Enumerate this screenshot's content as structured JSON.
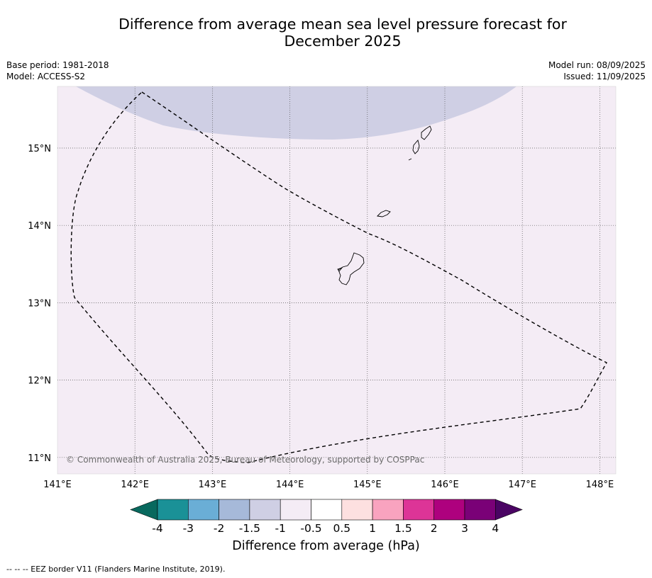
{
  "title_line1": "Difference from average mean sea level pressure forecast for",
  "title_line2": "December 2025",
  "base_period": "Base period: 1981-2018",
  "model": "Model: ACCESS-S2",
  "model_run": "Model run: 08/09/2025",
  "issued": "Issued: 11/09/2025",
  "copyright": "© Commonwealth of Australia 2025, Bureau of Meteorology, supported by COSPPac",
  "lon_ticks": [
    "141°E",
    "142°E",
    "143°E",
    "144°E",
    "145°E",
    "146°E",
    "147°E",
    "148°E"
  ],
  "lat_ticks": [
    "15°N",
    "14°N",
    "13°N",
    "12°N",
    "11°N"
  ],
  "lon_values": [
    141,
    142,
    143,
    144,
    145,
    146,
    147,
    148
  ],
  "lat_values": [
    15,
    14,
    13,
    12,
    11
  ],
  "colorbar": {
    "title": "Difference from average (hPa)",
    "ticks": [
      "-4",
      "-3",
      "-2",
      "-1.5",
      "-1",
      "-0.5",
      "0.5",
      "1",
      "1.5",
      "2",
      "3",
      "4"
    ],
    "under_color": "#08695e",
    "over_color": "#4a0463",
    "colors": [
      "#1a9197",
      "#6aaed6",
      "#a6b9d9",
      "#cfcfe4",
      "#f4ecf5",
      "#ffffff",
      "#fde0e0",
      "#f9a3bf",
      "#dd3497",
      "#ae017e",
      "#7a0177"
    ]
  },
  "map": {
    "background_color": "#f4ecf5",
    "region_color": "#cfcfe4",
    "region_value_range": "-1.5 to -1"
  },
  "footnote": "--  --  -- EEZ border V11 (Flanders Marine Institute, 2019)."
}
